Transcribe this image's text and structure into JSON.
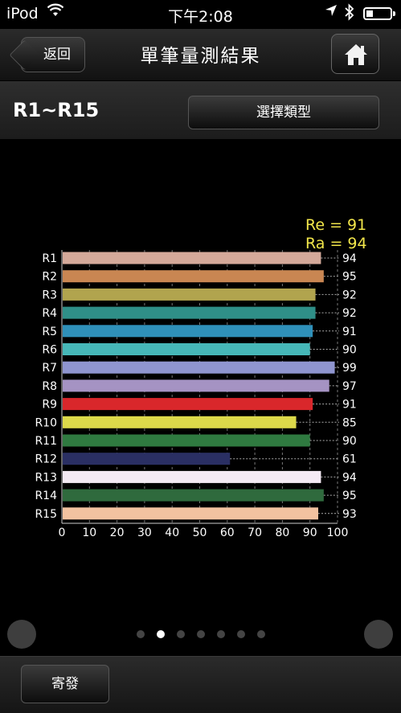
{
  "status_bar": {
    "carrier": "iPod",
    "time": "下午2:08",
    "wifi_icon": "wifi-icon",
    "location_icon": "location-arrow-icon",
    "bluetooth_icon": "bluetooth-icon",
    "battery_icon": "battery-low-icon"
  },
  "nav": {
    "back_label": "返回",
    "title": "單筆量測結果",
    "home_icon": "home-icon"
  },
  "sub_header": {
    "range_label": "R1~R15",
    "type_button_label": "選擇類型"
  },
  "summary": {
    "re": "Re = 91",
    "ra": "Ra = 94"
  },
  "chart_data": {
    "type": "bar",
    "orientation": "horizontal",
    "categories": [
      "R1",
      "R2",
      "R3",
      "R4",
      "R5",
      "R6",
      "R7",
      "R8",
      "R9",
      "R10",
      "R11",
      "R12",
      "R13",
      "R14",
      "R15"
    ],
    "values": [
      94,
      95,
      92,
      92,
      91,
      90,
      99,
      97,
      91,
      85,
      90,
      61,
      94,
      95,
      93
    ],
    "colors": [
      "#d4a99a",
      "#c98652",
      "#b1a44e",
      "#2f8f88",
      "#2f90b9",
      "#46b7b8",
      "#8f95cf",
      "#a593c3",
      "#d9272b",
      "#dcd94a",
      "#2f7a40",
      "#2a2f63",
      "#f4eaf4",
      "#2f6a3d",
      "#f2c2a0"
    ],
    "x_ticks": [
      "0",
      "10",
      "20",
      "30",
      "40",
      "50",
      "60",
      "70",
      "80",
      "90",
      "100"
    ],
    "xlim": [
      0,
      100
    ],
    "grid": "vertical dashed"
  },
  "pager": {
    "count": 7,
    "active_index": 1
  },
  "bottom_bar": {
    "send_label": "寄發"
  }
}
